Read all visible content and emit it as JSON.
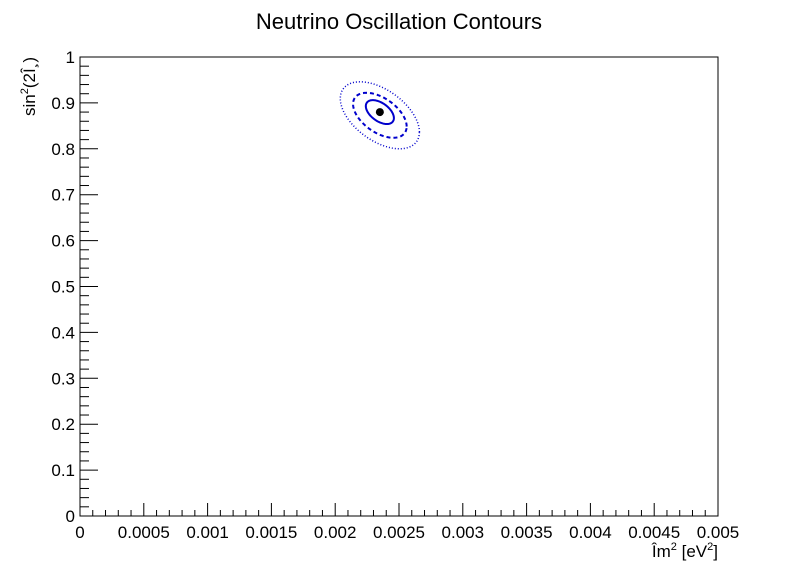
{
  "chart_data": {
    "type": "scatter",
    "title": "Neutrino Oscillation Contours",
    "xlabel_main": "Îm",
    "xlabel_sup": "2",
    "xlabel_unit": " [eV",
    "xlabel_unit_sup": "2",
    "xlabel_close": "]",
    "ylabel_main": "sin",
    "ylabel_sup": "2",
    "ylabel_rest": "(2Î¸)",
    "xlim": [
      0,
      0.005
    ],
    "ylim": [
      0,
      1
    ],
    "x_ticks": [
      "0",
      "0.0005",
      "0.001",
      "0.0015",
      "0.002",
      "0.0025",
      "0.003",
      "0.0035",
      "0.004",
      "0.0045",
      "0.005"
    ],
    "y_ticks": [
      "0",
      "0.1",
      "0.2",
      "0.3",
      "0.4",
      "0.5",
      "0.6",
      "0.7",
      "0.8",
      "0.9",
      "1"
    ],
    "best_fit": {
      "x": 0.00235,
      "y": 0.88
    },
    "contours": [
      {
        "style": "solid",
        "color": "#0000cc",
        "cx": 0.00235,
        "cy": 0.88,
        "rx": 0.00011,
        "ry": 0.026,
        "tilt": 0.5
      },
      {
        "style": "dashed",
        "color": "#0000cc",
        "cx": 0.00235,
        "cy": 0.873,
        "rx": 0.00021,
        "ry": 0.049,
        "tilt": 0.5
      },
      {
        "style": "dotted",
        "color": "#0000cc",
        "cx": 0.00235,
        "cy": 0.873,
        "rx": 0.00031,
        "ry": 0.073,
        "tilt": 0.5
      }
    ],
    "grid": false
  }
}
